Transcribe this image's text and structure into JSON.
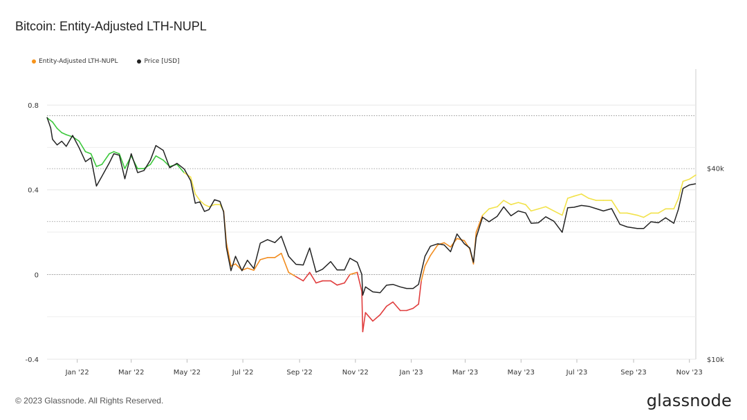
{
  "title": "Bitcoin: Entity-Adjusted LTH-NUPL",
  "footer": "© 2023 Glassnode. All Rights Reserved.",
  "brand": "glassnode",
  "legend": [
    {
      "label": "Entity-Adjusted LTH-NUPL",
      "color": "#f7931a"
    },
    {
      "label": "Price [USD]",
      "color": "#222222"
    }
  ],
  "colors": {
    "nupl_green": "#3cc83c",
    "nupl_yellow": "#f2e24a",
    "nupl_orange": "#f28c1e",
    "nupl_red": "#e03c3c",
    "price": "#222222",
    "grid": "#888888"
  },
  "chart_data": {
    "type": "line",
    "title": "Bitcoin: Entity-Adjusted LTH-NUPL",
    "x_ticks": [
      "Jan '22",
      "Mar '22",
      "May '22",
      "Jul '22",
      "Sep '22",
      "Nov '22",
      "Jan '23",
      "Mar '23",
      "May '23",
      "Jul '23",
      "Sep '23",
      "Nov '23"
    ],
    "x_range": [
      "2021-11-29",
      "2023-11-08"
    ],
    "left_axis": {
      "ticks": [
        "-0.4",
        "0",
        "0.4",
        "0.8"
      ],
      "ylim": [
        -0.4,
        0.97
      ]
    },
    "right_axis": {
      "ticks": [
        "$10k",
        "$40k"
      ],
      "scale": "log",
      "ylim": [
        10000,
        82000
      ]
    },
    "grid": "horizontal dotted",
    "legend_position": "top-left",
    "series": [
      {
        "name": "Entity-Adjusted LTH-NUPL",
        "axis": "left",
        "points": [
          [
            "2021-11-29",
            0.74
          ],
          [
            "2021-12-05",
            0.72
          ],
          [
            "2021-12-10",
            0.69
          ],
          [
            "2021-12-15",
            0.67
          ],
          [
            "2021-12-20",
            0.66
          ],
          [
            "2021-12-27",
            0.65
          ],
          [
            "2022-01-03",
            0.63
          ],
          [
            "2022-01-10",
            0.58
          ],
          [
            "2022-01-16",
            0.57
          ],
          [
            "2022-01-22",
            0.51
          ],
          [
            "2022-01-28",
            0.52
          ],
          [
            "2022-02-05",
            0.57
          ],
          [
            "2022-02-10",
            0.58
          ],
          [
            "2022-02-16",
            0.57
          ],
          [
            "2022-02-22",
            0.5
          ],
          [
            "2022-03-01",
            0.56
          ],
          [
            "2022-03-08",
            0.5
          ],
          [
            "2022-03-15",
            0.5
          ],
          [
            "2022-03-22",
            0.52
          ],
          [
            "2022-03-28",
            0.56
          ],
          [
            "2022-04-05",
            0.54
          ],
          [
            "2022-04-12",
            0.51
          ],
          [
            "2022-04-20",
            0.52
          ],
          [
            "2022-04-28",
            0.48
          ],
          [
            "2022-05-05",
            0.46
          ],
          [
            "2022-05-10",
            0.38
          ],
          [
            "2022-05-15",
            0.35
          ],
          [
            "2022-05-20",
            0.33
          ],
          [
            "2022-05-25",
            0.32
          ],
          [
            "2022-05-31",
            0.33
          ],
          [
            "2022-06-06",
            0.33
          ],
          [
            "2022-06-10",
            0.3
          ],
          [
            "2022-06-13",
            0.15
          ],
          [
            "2022-06-18",
            0.04
          ],
          [
            "2022-06-23",
            0.05
          ],
          [
            "2022-06-30",
            0.02
          ],
          [
            "2022-07-06",
            0.03
          ],
          [
            "2022-07-13",
            0.02
          ],
          [
            "2022-07-20",
            0.07
          ],
          [
            "2022-07-28",
            0.08
          ],
          [
            "2022-08-05",
            0.08
          ],
          [
            "2022-08-12",
            0.1
          ],
          [
            "2022-08-20",
            0.01
          ],
          [
            "2022-08-28",
            -0.01
          ],
          [
            "2022-09-05",
            -0.03
          ],
          [
            "2022-09-12",
            0.01
          ],
          [
            "2022-09-19",
            -0.04
          ],
          [
            "2022-09-26",
            -0.03
          ],
          [
            "2022-10-05",
            -0.03
          ],
          [
            "2022-10-12",
            -0.05
          ],
          [
            "2022-10-20",
            -0.04
          ],
          [
            "2022-10-26",
            0.0
          ],
          [
            "2022-11-03",
            0.01
          ],
          [
            "2022-11-08",
            -0.08
          ],
          [
            "2022-11-09",
            -0.27
          ],
          [
            "2022-11-12",
            -0.18
          ],
          [
            "2022-11-20",
            -0.22
          ],
          [
            "2022-11-28",
            -0.19
          ],
          [
            "2022-12-05",
            -0.15
          ],
          [
            "2022-12-12",
            -0.13
          ],
          [
            "2022-12-20",
            -0.17
          ],
          [
            "2022-12-27",
            -0.17
          ],
          [
            "2023-01-03",
            -0.16
          ],
          [
            "2023-01-09",
            -0.14
          ],
          [
            "2023-01-12",
            -0.03
          ],
          [
            "2023-01-16",
            0.04
          ],
          [
            "2023-01-22",
            0.09
          ],
          [
            "2023-01-30",
            0.14
          ],
          [
            "2023-02-06",
            0.15
          ],
          [
            "2023-02-13",
            0.13
          ],
          [
            "2023-02-20",
            0.17
          ],
          [
            "2023-02-28",
            0.16
          ],
          [
            "2023-03-06",
            0.12
          ],
          [
            "2023-03-10",
            0.05
          ],
          [
            "2023-03-13",
            0.2
          ],
          [
            "2023-03-20",
            0.28
          ],
          [
            "2023-03-27",
            0.31
          ],
          [
            "2023-04-05",
            0.32
          ],
          [
            "2023-04-12",
            0.35
          ],
          [
            "2023-04-20",
            0.33
          ],
          [
            "2023-04-28",
            0.34
          ],
          [
            "2023-05-06",
            0.33
          ],
          [
            "2023-05-12",
            0.3
          ],
          [
            "2023-05-20",
            0.31
          ],
          [
            "2023-05-28",
            0.32
          ],
          [
            "2023-06-06",
            0.3
          ],
          [
            "2023-06-15",
            0.28
          ],
          [
            "2023-06-21",
            0.36
          ],
          [
            "2023-06-28",
            0.37
          ],
          [
            "2023-07-06",
            0.38
          ],
          [
            "2023-07-14",
            0.36
          ],
          [
            "2023-07-22",
            0.35
          ],
          [
            "2023-07-30",
            0.35
          ],
          [
            "2023-08-08",
            0.35
          ],
          [
            "2023-08-17",
            0.29
          ],
          [
            "2023-08-25",
            0.29
          ],
          [
            "2023-09-05",
            0.28
          ],
          [
            "2023-09-12",
            0.27
          ],
          [
            "2023-09-20",
            0.29
          ],
          [
            "2023-09-28",
            0.29
          ],
          [
            "2023-10-06",
            0.31
          ],
          [
            "2023-10-15",
            0.31
          ],
          [
            "2023-10-20",
            0.36
          ],
          [
            "2023-10-25",
            0.44
          ],
          [
            "2023-11-01",
            0.45
          ],
          [
            "2023-11-08",
            0.47
          ]
        ]
      },
      {
        "name": "Price [USD]",
        "axis": "right",
        "points": [
          [
            "2021-11-29",
            57800
          ],
          [
            "2021-12-03",
            53500
          ],
          [
            "2021-12-05",
            49300
          ],
          [
            "2021-12-10",
            47300
          ],
          [
            "2021-12-15",
            48600
          ],
          [
            "2021-12-20",
            46800
          ],
          [
            "2021-12-27",
            50700
          ],
          [
            "2022-01-03",
            46400
          ],
          [
            "2022-01-10",
            41900
          ],
          [
            "2022-01-16",
            43100
          ],
          [
            "2022-01-22",
            35100
          ],
          [
            "2022-01-28",
            37700
          ],
          [
            "2022-02-05",
            41500
          ],
          [
            "2022-02-10",
            44400
          ],
          [
            "2022-02-16",
            43900
          ],
          [
            "2022-02-22",
            37000
          ],
          [
            "2022-03-01",
            44400
          ],
          [
            "2022-03-08",
            38700
          ],
          [
            "2022-03-15",
            39300
          ],
          [
            "2022-03-22",
            42400
          ],
          [
            "2022-03-28",
            47100
          ],
          [
            "2022-04-05",
            45500
          ],
          [
            "2022-04-12",
            40100
          ],
          [
            "2022-04-20",
            41400
          ],
          [
            "2022-04-28",
            39700
          ],
          [
            "2022-05-05",
            36500
          ],
          [
            "2022-05-10",
            31000
          ],
          [
            "2022-05-15",
            31300
          ],
          [
            "2022-05-20",
            29200
          ],
          [
            "2022-05-25",
            29600
          ],
          [
            "2022-05-31",
            31800
          ],
          [
            "2022-06-06",
            31400
          ],
          [
            "2022-06-10",
            29100
          ],
          [
            "2022-06-13",
            22500
          ],
          [
            "2022-06-18",
            19000
          ],
          [
            "2022-06-23",
            21100
          ],
          [
            "2022-06-30",
            19000
          ],
          [
            "2022-07-06",
            20500
          ],
          [
            "2022-07-13",
            19300
          ],
          [
            "2022-07-20",
            23200
          ],
          [
            "2022-07-28",
            23800
          ],
          [
            "2022-08-05",
            23300
          ],
          [
            "2022-08-12",
            24400
          ],
          [
            "2022-08-20",
            21100
          ],
          [
            "2022-08-28",
            19900
          ],
          [
            "2022-09-05",
            19800
          ],
          [
            "2022-09-12",
            22400
          ],
          [
            "2022-09-19",
            18800
          ],
          [
            "2022-09-26",
            19200
          ],
          [
            "2022-10-05",
            20300
          ],
          [
            "2022-10-12",
            19100
          ],
          [
            "2022-10-20",
            19100
          ],
          [
            "2022-10-26",
            20800
          ],
          [
            "2022-11-03",
            20200
          ],
          [
            "2022-11-08",
            18500
          ],
          [
            "2022-11-09",
            15900
          ],
          [
            "2022-11-12",
            16900
          ],
          [
            "2022-11-20",
            16300
          ],
          [
            "2022-11-28",
            16200
          ],
          [
            "2022-12-05",
            17100
          ],
          [
            "2022-12-12",
            17200
          ],
          [
            "2022-12-20",
            16900
          ],
          [
            "2022-12-27",
            16700
          ],
          [
            "2023-01-03",
            16700
          ],
          [
            "2023-01-09",
            17200
          ],
          [
            "2023-01-12",
            18800
          ],
          [
            "2023-01-16",
            21100
          ],
          [
            "2023-01-22",
            22700
          ],
          [
            "2023-01-30",
            23100
          ],
          [
            "2023-02-06",
            22900
          ],
          [
            "2023-02-13",
            21800
          ],
          [
            "2023-02-20",
            24800
          ],
          [
            "2023-02-28",
            23100
          ],
          [
            "2023-03-06",
            22400
          ],
          [
            "2023-03-10",
            20200
          ],
          [
            "2023-03-13",
            24200
          ],
          [
            "2023-03-20",
            28000
          ],
          [
            "2023-03-27",
            27100
          ],
          [
            "2023-04-05",
            28200
          ],
          [
            "2023-04-12",
            30200
          ],
          [
            "2023-04-20",
            28300
          ],
          [
            "2023-04-28",
            29300
          ],
          [
            "2023-05-06",
            28900
          ],
          [
            "2023-05-12",
            26800
          ],
          [
            "2023-05-20",
            26900
          ],
          [
            "2023-05-28",
            28100
          ],
          [
            "2023-06-06",
            27200
          ],
          [
            "2023-06-15",
            25100
          ],
          [
            "2023-06-21",
            30000
          ],
          [
            "2023-06-28",
            30100
          ],
          [
            "2023-07-06",
            30500
          ],
          [
            "2023-07-14",
            30300
          ],
          [
            "2023-07-22",
            29800
          ],
          [
            "2023-07-30",
            29300
          ],
          [
            "2023-08-08",
            29800
          ],
          [
            "2023-08-17",
            26600
          ],
          [
            "2023-08-25",
            26100
          ],
          [
            "2023-09-05",
            25800
          ],
          [
            "2023-09-12",
            25800
          ],
          [
            "2023-09-20",
            27100
          ],
          [
            "2023-09-28",
            26900
          ],
          [
            "2023-10-06",
            27900
          ],
          [
            "2023-10-15",
            26800
          ],
          [
            "2023-10-20",
            29700
          ],
          [
            "2023-10-25",
            34500
          ],
          [
            "2023-11-01",
            35400
          ],
          [
            "2023-11-08",
            35700
          ]
        ]
      }
    ]
  }
}
